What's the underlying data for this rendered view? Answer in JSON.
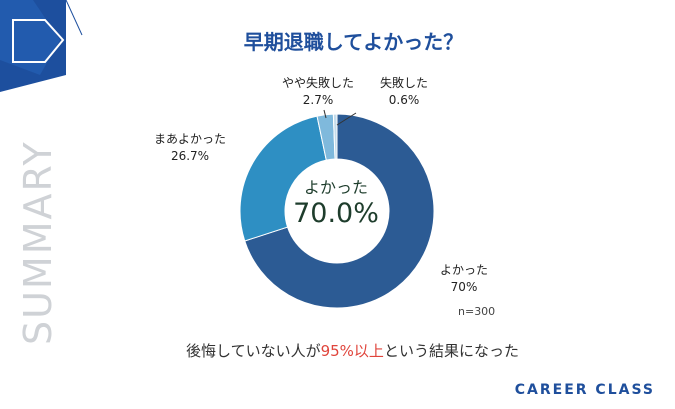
{
  "side_label": "SUMMARY",
  "title": "早期退職してよかった？",
  "chart_data": {
    "type": "pie",
    "categories": [
      "よかった",
      "まあよかった",
      "やや失敗した",
      "失敗した"
    ],
    "values": [
      70,
      26.7,
      2.7,
      0.6
    ],
    "value_labels": [
      "70%",
      "26.7%",
      "2.7%",
      "0.6%"
    ],
    "colors": [
      "#2c5b94",
      "#2e8fc3",
      "#7fb9dc",
      "#c4dceb"
    ],
    "center_caption": "よかった",
    "center_value": "70.0%"
  },
  "sample_note": "n=300",
  "conclusion": {
    "before": "後悔していない人が",
    "highlight": "95%以上",
    "after": "という結果になった"
  },
  "brand": "CAREER CLASS"
}
